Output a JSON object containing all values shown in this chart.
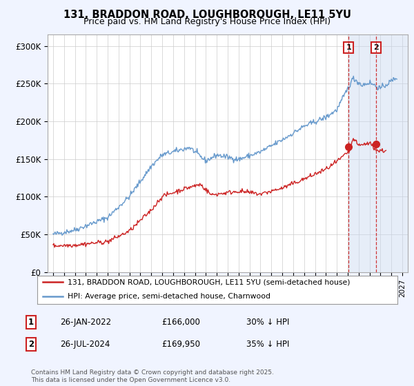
{
  "title": "131, BRADDON ROAD, LOUGHBOROUGH, LE11 5YU",
  "subtitle": "Price paid vs. HM Land Registry's House Price Index (HPI)",
  "ylabel_ticks": [
    "£0",
    "£50K",
    "£100K",
    "£150K",
    "£200K",
    "£250K",
    "£300K"
  ],
  "ytick_values": [
    0,
    50000,
    100000,
    150000,
    200000,
    250000,
    300000
  ],
  "ylim": [
    0,
    315000
  ],
  "xlim_start": 1994.5,
  "xlim_end": 2027.5,
  "legend1_label": "131, BRADDON ROAD, LOUGHBOROUGH, LE11 5YU (semi-detached house)",
  "legend2_label": "HPI: Average price, semi-detached house, Charnwood",
  "sale1_label": "1",
  "sale1_date": "26-JAN-2022",
  "sale1_price": "£166,000",
  "sale1_hpi": "30% ↓ HPI",
  "sale2_label": "2",
  "sale2_date": "26-JUL-2024",
  "sale2_price": "£169,950",
  "sale2_hpi": "35% ↓ HPI",
  "footer": "Contains HM Land Registry data © Crown copyright and database right 2025.\nThis data is licensed under the Open Government Licence v3.0.",
  "hpi_color": "#6699cc",
  "price_color": "#cc2222",
  "sale1_x": 2022.07,
  "sale1_y": 166000,
  "sale2_x": 2024.57,
  "sale2_y": 169950,
  "bg_color": "#f0f4ff",
  "plot_bg": "#ffffff",
  "grid_color": "#cccccc",
  "hatch_color": "#c8d8f0"
}
